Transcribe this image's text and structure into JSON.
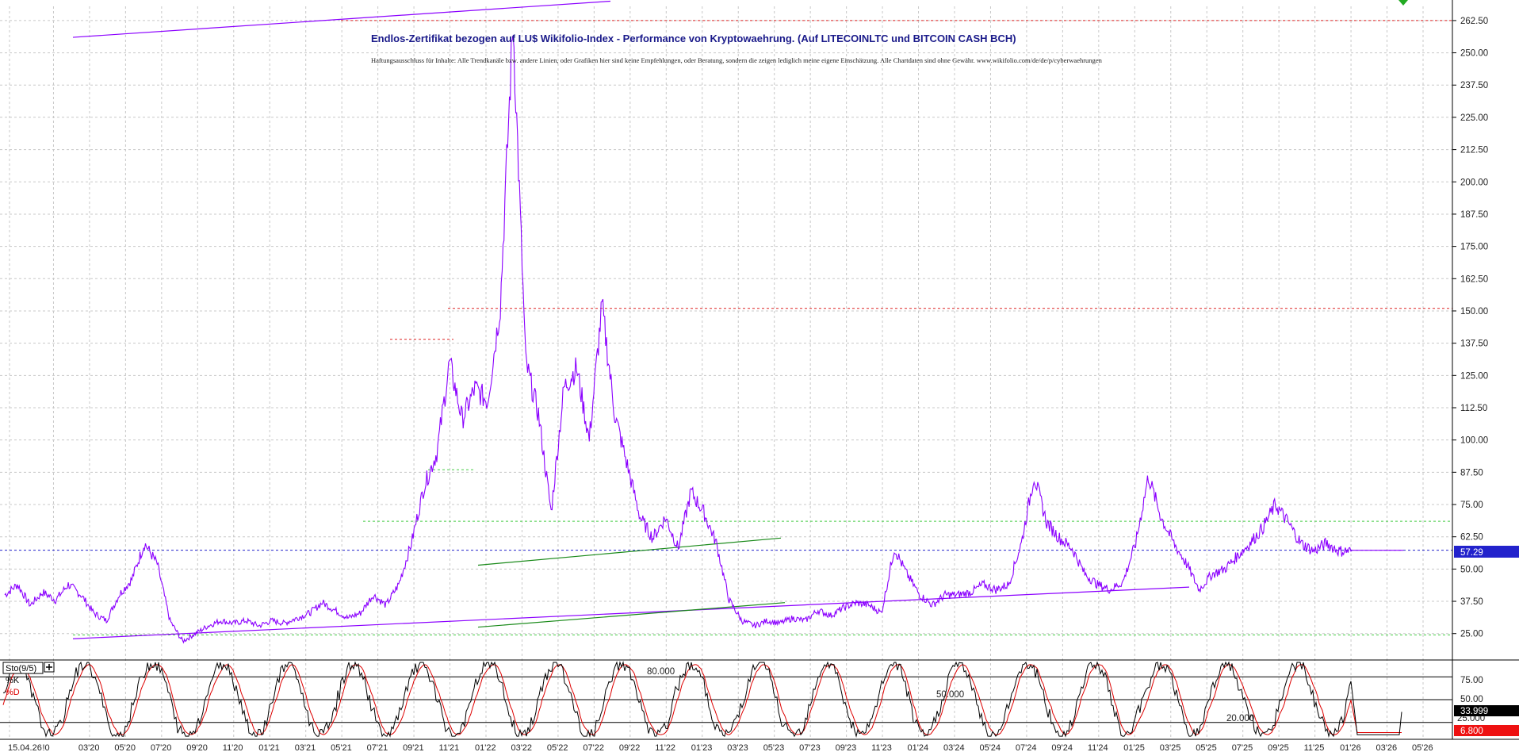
{
  "title": "Endlos-Zertifikat bezogen auf LU$ Wikifolio-Index - Performance von Kryptowaehrung. (Auf LITECOINLTC und BITCOIN CASH BCH)",
  "disclaimer": "Haftungsausschluss für Inhalte: Alle Trendkanäle bzw. andere Linien, oder Grafiken hier sind keine Empfehlungen, oder Beratung, sondern die zeigen lediglich meine eigene Einschätzung. Alle Chartdaten sind ohne Gewähr. www.wikifolio.com/de/de/p/cyberwaehrungen",
  "colors": {
    "price_line": "#8b00ff",
    "trend_green": "#1a8a1a",
    "support_dotted_green": "#44cc44",
    "resistance_dotted_red": "#dd2222",
    "current_price_line": "#2222cc",
    "stoch_k": "#000000",
    "stoch_d": "#dd0000",
    "grid": "#c8c8c8"
  },
  "current_price_label": "57.29",
  "stochastic": {
    "label": "Sto(9/5)",
    "k_label": "%K",
    "d_label": "%D",
    "level_80": "80.000",
    "level_50": "50.000",
    "level_20": "20.000",
    "k_value": "33.999",
    "d_value": "6.800",
    "d_overlap_text": "25.000",
    "y_ticks": [
      "75.00",
      "50.00"
    ]
  },
  "chart_data": {
    "type": "line",
    "title": "Endlos-Zertifikat bezogen auf LU$ Wikifolio-Index - Performance von Kryptowaehrung. (Auf LITECOINLTC und BITCOIN CASH BCH)",
    "xlabel": "",
    "ylabel": "",
    "ylim": [
      16,
      268
    ],
    "y_ticks": [
      "262.50",
      "250.00",
      "237.50",
      "225.00",
      "212.50",
      "200.00",
      "187.50",
      "175.00",
      "162.50",
      "150.00",
      "137.50",
      "125.00",
      "112.50",
      "100.00",
      "87.50",
      "75.00",
      "62.50",
      "50.00",
      "37.50",
      "25.00"
    ],
    "x_ticks": [
      "15.04.26",
      "!0",
      "03'20",
      "05'20",
      "07'20",
      "09'20",
      "11'20",
      "01'21",
      "03'21",
      "05'21",
      "07'21",
      "09'21",
      "11'21",
      "01'22",
      "03'22",
      "05'22",
      "07'22",
      "09'22",
      "11'22",
      "01'23",
      "03'23",
      "05'23",
      "07'23",
      "09'23",
      "11'23",
      "01'24",
      "03'24",
      "05'24",
      "07'24",
      "09'24",
      "11'24",
      "01'25",
      "03'25",
      "05'25",
      "07'25",
      "09'25",
      "11'25",
      "01'26",
      "03'26",
      "05'26"
    ],
    "grid": true,
    "legend": "none",
    "series": [
      {
        "values": [
          40,
          44,
          36,
          41,
          38,
          44,
          40,
          33,
          30,
          40,
          46,
          60,
          52,
          30,
          22,
          25,
          28,
          30,
          29,
          30,
          28,
          30,
          29,
          31,
          33,
          37,
          34,
          31,
          33,
          40,
          36,
          44,
          60,
          82,
          95,
          130,
          108,
          120,
          115,
          152,
          262,
          130,
          110,
          72,
          120,
          128,
          100,
          152,
          110,
          90,
          70,
          62,
          70,
          58,
          80,
          72,
          60,
          38,
          30,
          28,
          30,
          29,
          31,
          30,
          34,
          32,
          35,
          37,
          36,
          33,
          58,
          48,
          40,
          36,
          40,
          40,
          41,
          44,
          42,
          44,
          60,
          86,
          68,
          62,
          58,
          48,
          44,
          42,
          45,
          60,
          86,
          70,
          60,
          52,
          42,
          48,
          50,
          55,
          60,
          66,
          75,
          68,
          60,
          57,
          60,
          57,
          57
        ]
      }
    ],
    "trendlines": [
      {
        "color": "purple",
        "from": [
          92,
          256
        ],
        "to": [
          770,
          270
        ]
      },
      {
        "color": "purple",
        "from": [
          92,
          23
        ],
        "to": [
          1500,
          43
        ]
      },
      {
        "color": "green",
        "from": [
          603,
          51.5
        ],
        "to": [
          985,
          62
        ]
      },
      {
        "color": "green",
        "from": [
          603,
          27.5
        ],
        "to": [
          990,
          37
        ]
      }
    ],
    "horizontal_levels": [
      {
        "value": 262.5,
        "color": "red",
        "style": "dotted"
      },
      {
        "value": 151,
        "color": "red",
        "style": "dotted"
      },
      {
        "value": 139,
        "color": "red",
        "style": "dotted"
      },
      {
        "value": 88.5,
        "color": "green",
        "style": "dotted"
      },
      {
        "value": 68.5,
        "color": "green",
        "style": "dotted"
      },
      {
        "value": 57.29,
        "color": "blue",
        "style": "dotted"
      },
      {
        "value": 24.5,
        "color": "green",
        "style": "dotted"
      }
    ],
    "last_value": 57.29
  }
}
